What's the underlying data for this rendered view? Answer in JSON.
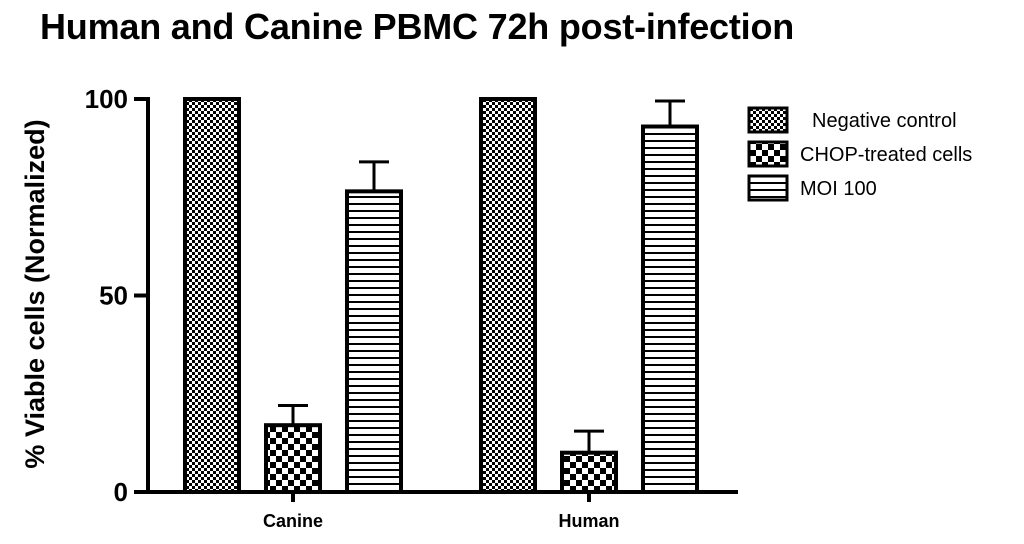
{
  "chart_data": {
    "type": "bar",
    "title": "Human and Canine PBMC 72h post-infection",
    "xlabel": "",
    "ylabel": "% Viable cells (Normalized)",
    "ylim": [
      0,
      100
    ],
    "yticks": [
      "0",
      "50",
      "100"
    ],
    "categories": [
      "Canine",
      "Human"
    ],
    "series": [
      {
        "name": "Negative control",
        "values": [
          100,
          100
        ],
        "errors": [
          0,
          0
        ],
        "pattern": "fine-checker"
      },
      {
        "name": "CHOP-treated cells",
        "values": [
          17,
          10
        ],
        "errors": [
          5,
          5.5
        ],
        "pattern": "coarse-checker"
      },
      {
        "name": "MOI 100",
        "values": [
          76.5,
          93
        ],
        "errors": [
          7.5,
          6.5
        ],
        "pattern": "horizontal-lines"
      }
    ],
    "legend_position": "top-right",
    "colors": {
      "ink": "#000000",
      "background": "#ffffff"
    }
  }
}
